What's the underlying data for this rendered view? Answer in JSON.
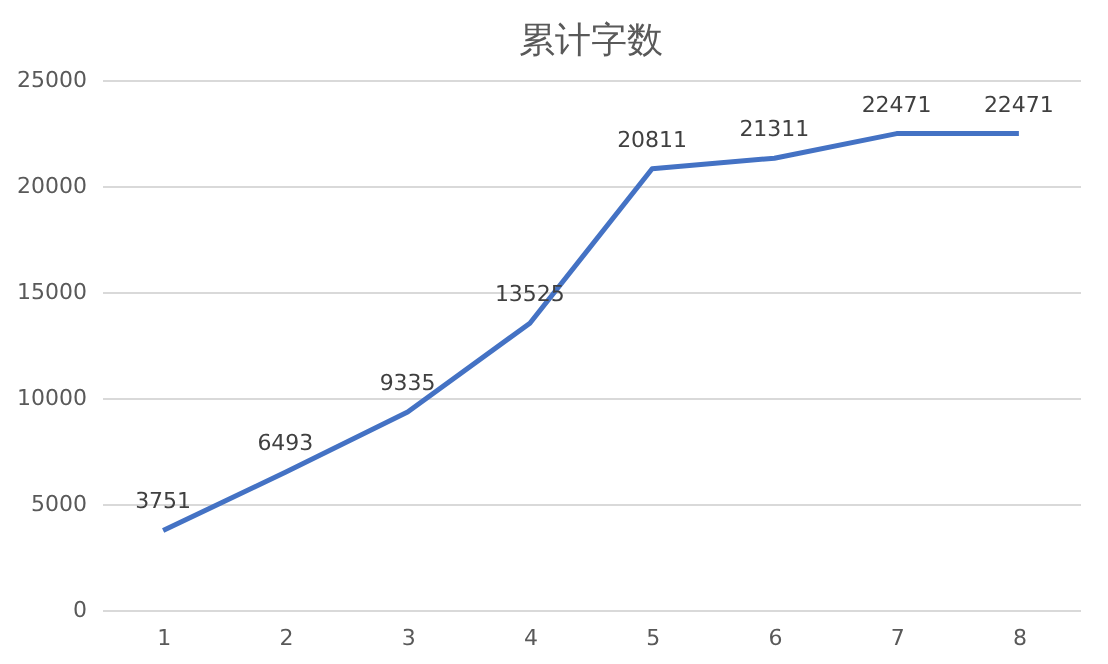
{
  "chart_data": {
    "type": "line",
    "title": "累计字数",
    "categories": [
      "1",
      "2",
      "3",
      "4",
      "5",
      "6",
      "7",
      "8"
    ],
    "series": [
      {
        "color": "#4472c4",
        "values": [
          3751,
          6493,
          9335,
          13525,
          20811,
          21311,
          22471,
          22471
        ]
      }
    ],
    "ylim": [
      0,
      25000
    ],
    "yticks": [
      0,
      5000,
      10000,
      15000,
      20000,
      25000
    ],
    "grid": "y",
    "data_labels": true,
    "marker": "none",
    "line_style": "solid",
    "legend": false
  }
}
